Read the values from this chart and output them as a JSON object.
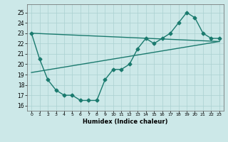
{
  "line1_x": [
    0,
    1,
    2,
    3,
    4,
    5,
    6,
    7,
    8,
    9,
    10,
    11,
    12,
    13,
    14,
    15,
    16,
    17,
    18,
    19,
    20,
    21,
    22,
    23
  ],
  "line1_y": [
    23,
    20.5,
    18.5,
    17.5,
    17,
    17,
    16.5,
    16.5,
    16.5,
    18.5,
    19.5,
    19.5,
    20,
    21.5,
    22.5,
    22,
    22.5,
    23,
    24,
    25,
    24.5,
    23,
    22.5,
    22.5
  ],
  "line2_x": [
    0,
    23
  ],
  "line2_y": [
    23,
    22.2
  ],
  "line3_x": [
    0,
    23
  ],
  "line3_y": [
    19.2,
    22.2
  ],
  "color": "#1a7a6e",
  "bg_color": "#cce8e8",
  "grid_color": "#aad0d0",
  "xlabel": "Humidex (Indice chaleur)",
  "ylim": [
    15.5,
    25.8
  ],
  "xlim": [
    -0.5,
    23.5
  ],
  "yticks": [
    16,
    17,
    18,
    19,
    20,
    21,
    22,
    23,
    24,
    25
  ],
  "xticks": [
    0,
    1,
    2,
    3,
    4,
    5,
    6,
    7,
    8,
    9,
    10,
    11,
    12,
    13,
    14,
    15,
    16,
    17,
    18,
    19,
    20,
    21,
    22,
    23
  ],
  "xtick_labels": [
    "0",
    "1",
    "2",
    "3",
    "4",
    "5",
    "6",
    "7",
    "8",
    "9",
    "10",
    "11",
    "12",
    "13",
    "14",
    "15",
    "16",
    "17",
    "18",
    "19",
    "20",
    "21",
    "22",
    "23"
  ],
  "marker": "D",
  "markersize": 2.5,
  "linewidth": 1.0
}
